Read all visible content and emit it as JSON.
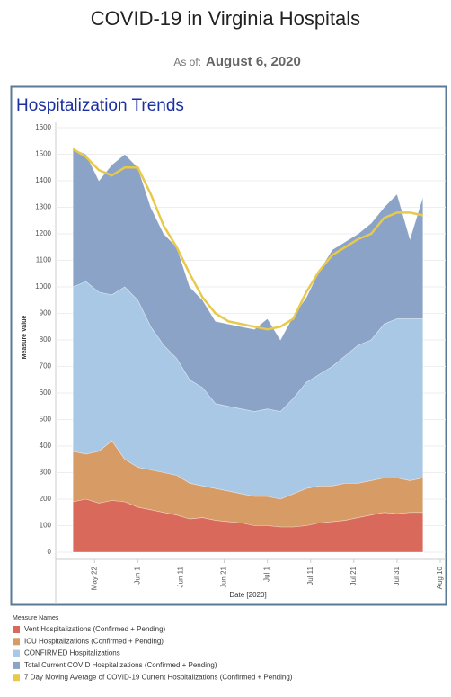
{
  "header": {
    "title": "COVID-19 in Virginia Hospitals",
    "as_of_label": "As of:",
    "as_of_date": "August 6, 2020"
  },
  "chart_data": {
    "type": "area",
    "title": "Hospitalization Trends",
    "x_label": "Date [2020]",
    "y_label": "Measure Value",
    "legend_title": "Measure Names",
    "x": [
      "2020-05-17",
      "2020-05-20",
      "2020-05-23",
      "2020-05-26",
      "2020-05-29",
      "2020-06-01",
      "2020-06-04",
      "2020-06-07",
      "2020-06-10",
      "2020-06-13",
      "2020-06-16",
      "2020-06-19",
      "2020-06-22",
      "2020-06-25",
      "2020-06-28",
      "2020-07-01",
      "2020-07-04",
      "2020-07-07",
      "2020-07-10",
      "2020-07-13",
      "2020-07-16",
      "2020-07-19",
      "2020-07-22",
      "2020-07-25",
      "2020-07-28",
      "2020-07-31",
      "2020-08-03",
      "2020-08-06"
    ],
    "xlim": [
      "2020-05-13",
      "2020-08-10"
    ],
    "xticks": [
      {
        "value": "2020-05-22",
        "label": "May 22"
      },
      {
        "value": "2020-06-01",
        "label": "Jun 1"
      },
      {
        "value": "2020-06-11",
        "label": "Jun 11"
      },
      {
        "value": "2020-06-21",
        "label": "Jun 21"
      },
      {
        "value": "2020-07-01",
        "label": "Jul 1"
      },
      {
        "value": "2020-07-11",
        "label": "Jul 11"
      },
      {
        "value": "2020-07-21",
        "label": "Jul 21"
      },
      {
        "value": "2020-07-31",
        "label": "Jul 31"
      },
      {
        "value": "2020-08-10",
        "label": "Aug 10"
      }
    ],
    "ylim": [
      0,
      1600
    ],
    "yticks": [
      0,
      100,
      200,
      300,
      400,
      500,
      600,
      700,
      800,
      900,
      1000,
      1100,
      1200,
      1300,
      1400,
      1500,
      1600
    ],
    "grid": true,
    "series": [
      {
        "name": "Vent Hospitalizations (Confirmed + Pending)",
        "color": "#d9695a",
        "values": [
          190,
          200,
          185,
          195,
          190,
          170,
          160,
          150,
          140,
          125,
          130,
          120,
          115,
          110,
          100,
          100,
          95,
          95,
          100,
          110,
          115,
          120,
          130,
          140,
          150,
          145,
          150,
          150
        ]
      },
      {
        "name": "ICU Hospitalizations (Confirmed + Pending)",
        "color": "#d79b66",
        "values": [
          380,
          370,
          380,
          420,
          350,
          320,
          310,
          300,
          290,
          260,
          250,
          240,
          230,
          220,
          210,
          210,
          200,
          220,
          240,
          250,
          250,
          260,
          260,
          270,
          280,
          280,
          270,
          280
        ]
      },
      {
        "name": "CONFIRMED Hospitalizations",
        "color": "#a9c8e6",
        "values": [
          1000,
          1020,
          980,
          970,
          1000,
          950,
          850,
          780,
          730,
          650,
          620,
          560,
          550,
          540,
          530,
          540,
          530,
          580,
          640,
          670,
          700,
          740,
          780,
          800,
          860,
          880,
          880,
          880
        ]
      },
      {
        "name": "Total Current COVID Hospitalizations (Confirmed + Pending)",
        "color": "#8aa3c6",
        "values": [
          1520,
          1500,
          1400,
          1460,
          1500,
          1450,
          1300,
          1200,
          1150,
          1000,
          950,
          870,
          860,
          850,
          840,
          880,
          800,
          890,
          960,
          1060,
          1140,
          1170,
          1200,
          1240,
          1300,
          1350,
          1180,
          1340
        ]
      },
      {
        "name": "7 Day Moving Average of COVID-19 Current Hospitalizations (Confirmed + Pending)",
        "color": "#e8c94c",
        "line": true,
        "values": [
          1520,
          1490,
          1440,
          1420,
          1450,
          1450,
          1350,
          1230,
          1150,
          1050,
          960,
          900,
          870,
          860,
          850,
          840,
          850,
          880,
          980,
          1060,
          1120,
          1150,
          1180,
          1200,
          1260,
          1280,
          1280,
          1270
        ]
      }
    ]
  }
}
